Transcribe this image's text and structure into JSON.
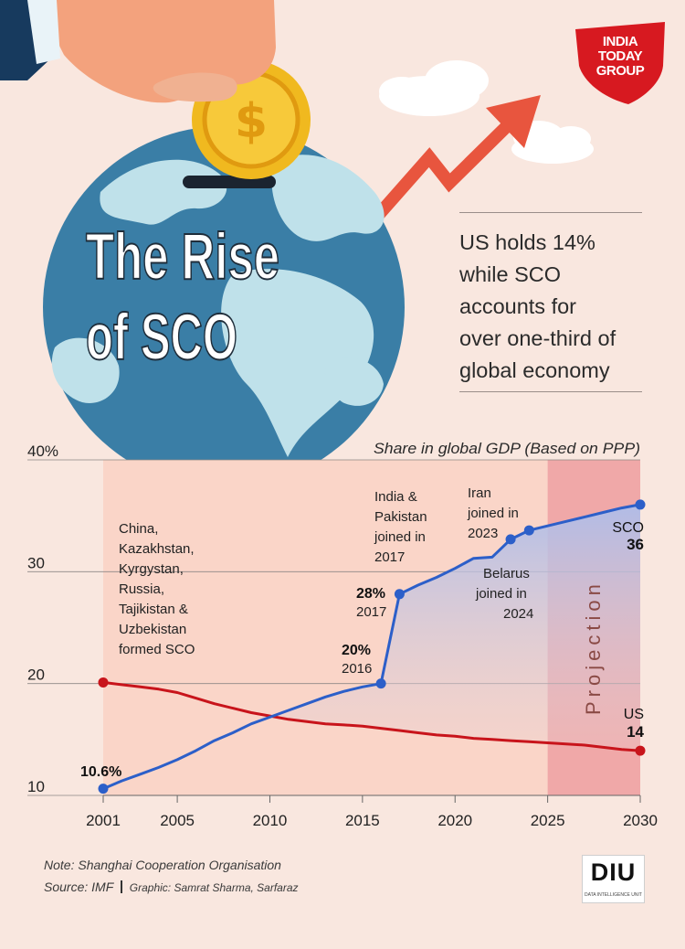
{
  "brand": {
    "logo_text": [
      "INDIA",
      "TODAY",
      "GROUP"
    ],
    "credit_logo": "DIU",
    "credit_logo_sub": "DATA INTELLIGENCE UNIT"
  },
  "hero": {
    "title_line1": "The Rise",
    "title_line2": "of SCO",
    "coin_symbol": "$"
  },
  "headline": {
    "lines": [
      "US holds 14%",
      "while SCO",
      "accounts for",
      "over one-third of",
      "global economy"
    ]
  },
  "footer": {
    "note": "Note: Shanghai Cooperation Organisation",
    "source": "Source: IMF",
    "graphic": "Graphic: Samrat Sharma, Sarfaraz"
  },
  "colors": {
    "background": "#f9e7df",
    "sco": "#2c5fc9",
    "us": "#c8141b",
    "projection": "#f0a8a8",
    "plot_area": "#fad5c8",
    "arrow": "#e8553e",
    "globe_ocean": "#3a7ea6",
    "globe_land": "#bfe1ea"
  },
  "chart_data": {
    "type": "line",
    "title": "Share in global GDP (Based on PPP)",
    "xlabel": "",
    "ylabel": "",
    "xlim": [
      2001,
      2030
    ],
    "ylim": [
      10,
      40
    ],
    "x_ticks": [
      "2001",
      "2005",
      "2010",
      "2015",
      "2020",
      "2025",
      "2030"
    ],
    "y_ticks": [
      "10",
      "20",
      "30",
      "40%"
    ],
    "grid": true,
    "projection": {
      "start": 2025,
      "end": 2030,
      "label": "Projection"
    },
    "series": [
      {
        "name": "SCO",
        "end_value_label": "36",
        "points": [
          [
            2001,
            10.6
          ],
          [
            2002,
            11.3
          ],
          [
            2003,
            11.9
          ],
          [
            2004,
            12.5
          ],
          [
            2005,
            13.2
          ],
          [
            2006,
            14.0
          ],
          [
            2007,
            14.9
          ],
          [
            2008,
            15.6
          ],
          [
            2009,
            16.4
          ],
          [
            2010,
            17.0
          ],
          [
            2011,
            17.6
          ],
          [
            2012,
            18.2
          ],
          [
            2013,
            18.8
          ],
          [
            2014,
            19.3
          ],
          [
            2015,
            19.7
          ],
          [
            2016,
            20.0
          ],
          [
            2017,
            28.0
          ],
          [
            2018,
            28.8
          ],
          [
            2019,
            29.5
          ],
          [
            2020,
            30.3
          ],
          [
            2021,
            31.2
          ],
          [
            2022,
            31.3
          ],
          [
            2023,
            32.9
          ],
          [
            2024,
            33.7
          ],
          [
            2025,
            34.1
          ],
          [
            2026,
            34.5
          ],
          [
            2027,
            34.9
          ],
          [
            2028,
            35.3
          ],
          [
            2029,
            35.7
          ],
          [
            2030,
            36.0
          ]
        ]
      },
      {
        "name": "US",
        "end_value_label": "14",
        "points": [
          [
            2001,
            20.1
          ],
          [
            2002,
            19.9
          ],
          [
            2003,
            19.7
          ],
          [
            2004,
            19.5
          ],
          [
            2005,
            19.2
          ],
          [
            2006,
            18.7
          ],
          [
            2007,
            18.2
          ],
          [
            2008,
            17.8
          ],
          [
            2009,
            17.4
          ],
          [
            2010,
            17.1
          ],
          [
            2011,
            16.8
          ],
          [
            2012,
            16.6
          ],
          [
            2013,
            16.4
          ],
          [
            2014,
            16.3
          ],
          [
            2015,
            16.2
          ],
          [
            2016,
            16.0
          ],
          [
            2017,
            15.8
          ],
          [
            2018,
            15.6
          ],
          [
            2019,
            15.4
          ],
          [
            2020,
            15.3
          ],
          [
            2021,
            15.1
          ],
          [
            2022,
            15.0
          ],
          [
            2023,
            14.9
          ],
          [
            2024,
            14.8
          ],
          [
            2025,
            14.7
          ],
          [
            2026,
            14.6
          ],
          [
            2027,
            14.5
          ],
          [
            2028,
            14.3
          ],
          [
            2029,
            14.1
          ],
          [
            2030,
            14.0
          ]
        ]
      }
    ],
    "marked_points": [
      {
        "series": "SCO",
        "x": 2001,
        "y": 10.6
      },
      {
        "series": "SCO",
        "x": 2016,
        "y": 20.0
      },
      {
        "series": "SCO",
        "x": 2017,
        "y": 28.0
      },
      {
        "series": "SCO",
        "x": 2023,
        "y": 32.9
      },
      {
        "series": "SCO",
        "x": 2024,
        "y": 33.7
      },
      {
        "series": "SCO",
        "x": 2030,
        "y": 36.0
      },
      {
        "series": "US",
        "x": 2001,
        "y": 20.1
      },
      {
        "series": "US",
        "x": 2030,
        "y": 14.0
      }
    ],
    "data_labels": [
      {
        "value": "10.6%",
        "year": ""
      },
      {
        "value": "20%",
        "year": "2016"
      },
      {
        "value": "28%",
        "year": "2017"
      }
    ],
    "annotations": [
      [
        "China,",
        "Kazakhstan,",
        "Kyrgystan,",
        "Russia,",
        "Tajikistan &",
        "Uzbekistan",
        "formed SCO"
      ],
      [
        "India &",
        "Pakistan",
        "joined in",
        "2017"
      ],
      [
        "Iran",
        "joined in",
        "2023"
      ],
      [
        "Belarus",
        "joined in",
        "2024"
      ]
    ]
  }
}
